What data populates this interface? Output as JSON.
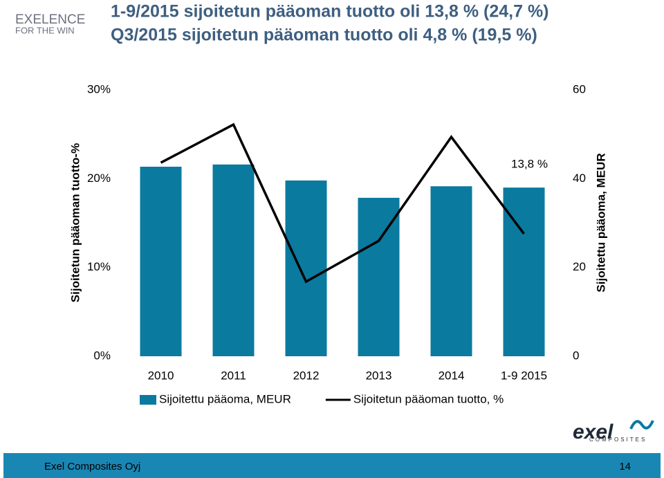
{
  "slide": {
    "logo_top": "EXELENCE",
    "logo_tagline": "FOR THE WIN",
    "logo_bottom": "exel",
    "logo_bottom_sub": "COMPOSITES",
    "footer": "Exel Composites Oyj",
    "page": "14"
  },
  "chart_data": {
    "type": "combo",
    "title": "1-9/2015 sijoitetun pääoman tuotto oli 13,8 % (24,7 %)",
    "subtitle": "Q3/2015 sijoitetun pääoman tuotto oli 4,8 % (19,5 %)",
    "y_label": "Sijoitetun pääoman tuotto-%",
    "y2_label": "Sijoitettu pääoma, MEUR",
    "categories": [
      "2010",
      "2011",
      "2012",
      "2013",
      "2014",
      "1-9 2015"
    ],
    "series": [
      {
        "name": "Sijoitettu pääoma, MEUR",
        "type": "bar",
        "axis": "y2",
        "color": "#0b7a9f",
        "values": [
          42.7,
          43.2,
          39.6,
          35.7,
          38.3,
          38.0
        ]
      },
      {
        "name": "Sijoitetun pääoman tuotto, %",
        "type": "line",
        "color": "#000000",
        "values": [
          21.8,
          26.1,
          8.4,
          13.0,
          24.7,
          13.8
        ],
        "value_labels": [
          null,
          null,
          null,
          null,
          null,
          "13,8 %"
        ]
      }
    ],
    "ylim": [
      0,
      30
    ],
    "yticks": [
      {
        "value": 0,
        "label": "0%"
      },
      {
        "value": 10,
        "label": "10%"
      },
      {
        "value": 20,
        "label": "20%"
      },
      {
        "value": 30,
        "label": "30%"
      }
    ],
    "y2lim": [
      0,
      60
    ],
    "y2ticks": [
      0,
      20,
      40,
      60
    ],
    "grid": false,
    "legend": "bottom"
  }
}
